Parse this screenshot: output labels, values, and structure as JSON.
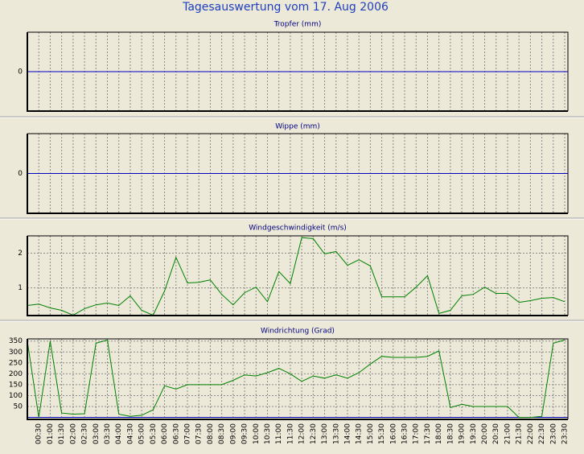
{
  "title": "Tagesauswertung vom 17. Aug 2006",
  "chart_data": [
    {
      "type": "line",
      "title": "Tropfer (mm)",
      "xlim": [
        0,
        23.64
      ],
      "ylim": [
        -1,
        1
      ],
      "yticks": [
        0
      ],
      "zero_line_color": "#0000c0",
      "grid": true,
      "xticks": [
        0.5,
        1,
        1.5,
        2,
        2.5,
        3,
        3.5,
        4,
        4.5,
        5,
        5.5,
        6,
        6.5,
        7,
        7.5,
        8,
        8.5,
        9,
        9.5,
        10,
        10.5,
        11,
        11.5,
        12,
        12.5,
        13,
        13.5,
        14,
        14.5,
        15,
        15.5,
        16,
        16.5,
        17,
        17.5,
        18,
        18.5,
        19,
        19.5,
        20,
        20.5,
        21,
        21.5,
        22,
        22.5,
        23,
        23.5
      ]
    },
    {
      "type": "line",
      "title": "Wippe (mm)",
      "xlim": [
        0,
        23.64
      ],
      "ylim": [
        -1,
        1
      ],
      "yticks": [
        0
      ],
      "zero_line_color": "#0000c0",
      "grid": true,
      "xticks": [
        0.5,
        1,
        1.5,
        2,
        2.5,
        3,
        3.5,
        4,
        4.5,
        5,
        5.5,
        6,
        6.5,
        7,
        7.5,
        8,
        8.5,
        9,
        9.5,
        10,
        10.5,
        11,
        11.5,
        12,
        12.5,
        13,
        13.5,
        14,
        14.5,
        15,
        15.5,
        16,
        16.5,
        17,
        17.5,
        18,
        18.5,
        19,
        19.5,
        20,
        20.5,
        21,
        21.5,
        22,
        22.5,
        23,
        23.5
      ]
    },
    {
      "type": "line",
      "title": "Windgeschwindigkeit (m/s)",
      "xlim": [
        0,
        23.64
      ],
      "ylim": [
        0.2,
        2.5
      ],
      "yticks": [
        1,
        2
      ],
      "zero_line_color": "#0000c0",
      "grid": true,
      "xticks": [
        0.5,
        1,
        1.5,
        2,
        2.5,
        3,
        3.5,
        4,
        4.5,
        5,
        5.5,
        6,
        6.5,
        7,
        7.5,
        8,
        8.5,
        9,
        9.5,
        10,
        10.5,
        11,
        11.5,
        12,
        12.5,
        13,
        13.5,
        14,
        14.5,
        15,
        15.5,
        16,
        16.5,
        17,
        17.5,
        18,
        18.5,
        19,
        19.5,
        20,
        20.5,
        21,
        21.5,
        22,
        22.5,
        23,
        23.5
      ],
      "x": [
        0,
        0.5,
        1,
        1.5,
        2,
        2.5,
        3,
        3.5,
        4,
        4.5,
        5,
        5.5,
        6,
        6.5,
        7,
        7.5,
        8,
        8.5,
        9,
        9.5,
        10,
        10.5,
        11,
        11.5,
        12,
        12.5,
        13,
        13.5,
        14,
        14.5,
        15,
        15.5,
        16,
        16.5,
        17,
        17.5,
        18,
        18.5,
        19,
        19.5,
        20,
        20.5,
        21,
        21.5,
        22,
        22.5,
        23,
        23.5
      ],
      "series": [
        {
          "color": "#008000",
          "values": [
            0.49,
            0.53,
            0.42,
            0.35,
            0.21,
            0.4,
            0.51,
            0.56,
            0.49,
            0.77,
            0.35,
            0.21,
            0.91,
            1.88,
            1.14,
            1.16,
            1.23,
            0.81,
            0.51,
            0.86,
            1.02,
            0.6,
            1.47,
            1.12,
            2.45,
            2.42,
            1.98,
            2.05,
            1.65,
            1.81,
            1.63,
            0.74,
            0.74,
            0.74,
            1.02,
            1.35,
            0.26,
            0.35,
            0.77,
            0.81,
            1.02,
            0.84,
            0.84,
            0.58,
            0.63,
            0.7,
            0.72,
            0.6
          ]
        }
      ]
    },
    {
      "type": "line",
      "title": "Windrichtung (Grad)",
      "xlim": [
        0,
        23.64
      ],
      "ylim": [
        -9,
        360
      ],
      "yticks": [
        50,
        100,
        150,
        200,
        250,
        300,
        350
      ],
      "zero_line_color": "#0000c0",
      "grid": true,
      "xticks": [
        {
          "value": 0.5,
          "label": "00:30"
        },
        {
          "value": 1,
          "label": "01:00"
        },
        {
          "value": 1.5,
          "label": "01:30"
        },
        {
          "value": 2,
          "label": "02:00"
        },
        {
          "value": 2.5,
          "label": "02:30"
        },
        {
          "value": 3,
          "label": "03:00"
        },
        {
          "value": 3.5,
          "label": "03:30"
        },
        {
          "value": 4,
          "label": "04:00"
        },
        {
          "value": 4.5,
          "label": "04:30"
        },
        {
          "value": 5,
          "label": "05:00"
        },
        {
          "value": 5.5,
          "label": "05:30"
        },
        {
          "value": 6,
          "label": "06:00"
        },
        {
          "value": 6.5,
          "label": "06:30"
        },
        {
          "value": 7,
          "label": "07:00"
        },
        {
          "value": 7.5,
          "label": "07:30"
        },
        {
          "value": 8,
          "label": "08:00"
        },
        {
          "value": 8.5,
          "label": "08:30"
        },
        {
          "value": 9,
          "label": "09:00"
        },
        {
          "value": 9.5,
          "label": "09:30"
        },
        {
          "value": 10,
          "label": "10:00"
        },
        {
          "value": 10.5,
          "label": "10:30"
        },
        {
          "value": 11,
          "label": "11:00"
        },
        {
          "value": 11.5,
          "label": "11:30"
        },
        {
          "value": 12,
          "label": "12:00"
        },
        {
          "value": 12.5,
          "label": "12:30"
        },
        {
          "value": 13,
          "label": "13:00"
        },
        {
          "value": 13.5,
          "label": "13:30"
        },
        {
          "value": 14,
          "label": "14:00"
        },
        {
          "value": 14.5,
          "label": "14:30"
        },
        {
          "value": 15,
          "label": "15:00"
        },
        {
          "value": 15.5,
          "label": "15:30"
        },
        {
          "value": 16,
          "label": "16:00"
        },
        {
          "value": 16.5,
          "label": "16:30"
        },
        {
          "value": 17,
          "label": "17:00"
        },
        {
          "value": 17.5,
          "label": "17:30"
        },
        {
          "value": 18,
          "label": "18:00"
        },
        {
          "value": 18.5,
          "label": "18:30"
        },
        {
          "value": 19,
          "label": "19:00"
        },
        {
          "value": 19.5,
          "label": "19:30"
        },
        {
          "value": 20,
          "label": "20:00"
        },
        {
          "value": 20.5,
          "label": "20:30"
        },
        {
          "value": 21,
          "label": "21:00"
        },
        {
          "value": 21.5,
          "label": "21:30"
        },
        {
          "value": 22,
          "label": "22:00"
        },
        {
          "value": 22.5,
          "label": "22:30"
        },
        {
          "value": 23,
          "label": "23:00"
        },
        {
          "value": 23.5,
          "label": "23:30"
        }
      ],
      "x": [
        0,
        0.5,
        1,
        1.5,
        2,
        2.5,
        3,
        3.5,
        4,
        4.5,
        5,
        5.5,
        6,
        6.5,
        7,
        7.5,
        8,
        8.5,
        9,
        9.5,
        10,
        10.5,
        11,
        11.5,
        12,
        12.5,
        13,
        13.5,
        14,
        14.5,
        15,
        15.5,
        16,
        16.5,
        17,
        17.5,
        18,
        18.5,
        19,
        19.5,
        20,
        20.5,
        21,
        21.5,
        22,
        22.5,
        23,
        23.5
      ],
      "series": [
        {
          "color": "#008000",
          "values": [
            350,
            0,
            350,
            20,
            15,
            17,
            340,
            355,
            15,
            5,
            10,
            35,
            145,
            130,
            150,
            150,
            150,
            150,
            170,
            195,
            190,
            205,
            225,
            200,
            165,
            190,
            180,
            195,
            180,
            205,
            245,
            280,
            275,
            275,
            275,
            280,
            305,
            45,
            60,
            50,
            50,
            50,
            50,
            0,
            0,
            5,
            340,
            355
          ]
        }
      ]
    }
  ]
}
